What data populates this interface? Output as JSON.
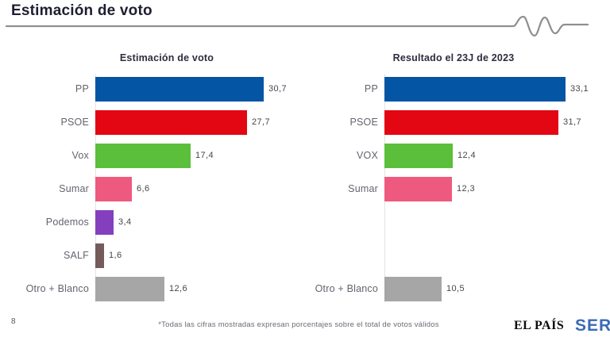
{
  "header": {
    "title": "Estimación de voto"
  },
  "footer": {
    "page_number": "8",
    "footnote": "*Todas las cifras mostradas expresan porcentajes sobre el total de votos válidos",
    "logo_elpais": "EL PAÍS",
    "logo_ser": "SER"
  },
  "chart_data": [
    {
      "type": "bar",
      "orientation": "horizontal",
      "title": "Estimación de voto",
      "categories": [
        "PP",
        "PSOE",
        "Vox",
        "Sumar",
        "Podemos",
        "SALF",
        "Otro + Blanco"
      ],
      "values": [
        30.7,
        27.7,
        17.4,
        6.6,
        3.4,
        1.6,
        12.6
      ],
      "value_labels": [
        "30,7",
        "27,7",
        "17,4",
        "6,6",
        "3,4",
        "1,6",
        "12,6"
      ],
      "colors": [
        "#0455a4",
        "#e30613",
        "#5bbf3b",
        "#ee5a7f",
        "#833fbe",
        "#755b5b",
        "#a6a6a6"
      ],
      "xlim": [
        0,
        36
      ],
      "grid": false,
      "legend": false,
      "total_rows": 7,
      "row_positions": [
        0,
        1,
        2,
        3,
        4,
        5,
        6
      ]
    },
    {
      "type": "bar",
      "orientation": "horizontal",
      "title": "Resultado el 23J de 2023",
      "categories": [
        "PP",
        "PSOE",
        "VOX",
        "Sumar",
        "Otro + Blanco"
      ],
      "values": [
        33.1,
        31.7,
        12.4,
        12.3,
        10.5
      ],
      "value_labels": [
        "33,1",
        "31,7",
        "12,4",
        "12,3",
        "10,5"
      ],
      "colors": [
        "#0455a4",
        "#e30613",
        "#5bbf3b",
        "#ee5a7f",
        "#a6a6a6"
      ],
      "xlim": [
        0,
        36
      ],
      "grid": false,
      "legend": false,
      "total_rows": 7,
      "row_positions": [
        0,
        1,
        2,
        3,
        6
      ]
    }
  ]
}
